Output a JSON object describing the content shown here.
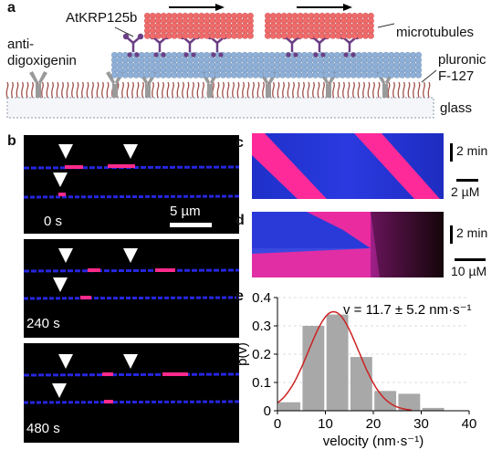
{
  "panels": {
    "a": {
      "letter": "a",
      "labels": {
        "motor": "AtKRP125b",
        "anti_dig_line1": "anti-",
        "anti_dig_line2": "digoxigenin",
        "microtubules": "microtubules",
        "pluronic_line1": "pluronic",
        "pluronic_line2": "F-127",
        "glass": "glass"
      }
    },
    "b": {
      "letter": "b",
      "times": [
        "0 s",
        "240 s",
        "480 s"
      ],
      "scale_bar": "5 µm"
    },
    "c": {
      "letter": "c",
      "time_scale": "2 min",
      "conc_scale": "2 µM"
    },
    "d": {
      "letter": "d",
      "time_scale": "2 min",
      "conc_scale": "10 µM"
    },
    "e": {
      "letter": "e"
    }
  },
  "colors": {
    "microtubule_blue": "#8fb0d8",
    "microtubule_red": "#f06b6b",
    "motor_purple": "#6b3f86",
    "antibody_gray": "#9a9a9a",
    "pluronic_brown": "#a0504a",
    "kymo_blue": "#2a2ad8",
    "kymo_magenta": "#ff2a9a",
    "hist_bar": "#a8a8a8",
    "fit_curve": "#cc2222"
  },
  "chart_data": {
    "type": "bar",
    "xlabel": "velocity (nm·s⁻¹)",
    "ylabel": "p(v)",
    "xlim": [
      0,
      40
    ],
    "ylim": [
      0,
      0.4
    ],
    "xticks": [
      "0",
      "10",
      "20",
      "30",
      "40"
    ],
    "yticks": [
      "0",
      "0.1",
      "0.2",
      "0.3",
      "0.4"
    ],
    "bin_width": 5,
    "bins": [
      0,
      5,
      10,
      15,
      20,
      25,
      30
    ],
    "values": [
      0.03,
      0.3,
      0.34,
      0.19,
      0.07,
      0.06,
      0.01
    ],
    "fit": {
      "mean": 11.7,
      "sd": 5.2
    },
    "annotation": "v = 11.7 ± 5.2 nm·s⁻¹",
    "grid": true
  }
}
